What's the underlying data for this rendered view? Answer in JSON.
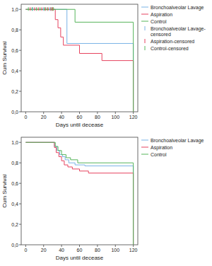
{
  "chart_data": [
    {
      "type": "line",
      "line_style": "step",
      "x_label": "Days until decease",
      "y_label": "Cum Survival",
      "xlim": [
        -5,
        125
      ],
      "ylim": [
        0,
        1.05
      ],
      "xticks": [
        0,
        20,
        40,
        60,
        80,
        100,
        120
      ],
      "yticks": [
        {
          "value": 0,
          "label": "0,0"
        },
        {
          "value": 0.2,
          "label": "0,2"
        },
        {
          "value": 0.4,
          "label": "0,4"
        },
        {
          "value": 0.6,
          "label": "0,6"
        },
        {
          "value": 0.8,
          "label": "0,8"
        },
        {
          "value": 1,
          "label": "1,0"
        }
      ],
      "grid": false,
      "legend": "right",
      "series": [
        {
          "name": "Bronchoalveolar Lavage",
          "color": "#79b3e6",
          "x": [
            0,
            46,
            120
          ],
          "values": [
            1,
            0.667,
            0
          ]
        },
        {
          "name": "Aspiration",
          "color": "#e6435f",
          "x": [
            0,
            33,
            36,
            39,
            42,
            60,
            85,
            120
          ],
          "values": [
            1,
            0.9,
            0.82,
            0.73,
            0.65,
            0.57,
            0.5,
            0
          ]
        },
        {
          "name": "Control",
          "color": "#56b45a",
          "x": [
            0,
            55,
            120
          ],
          "values": [
            1,
            0.875,
            0
          ]
        },
        {
          "name": "Bronchoalveolar Lavage-censored",
          "color": "#79b3e6",
          "type": "scatter",
          "marker": "tick",
          "x": [
            8,
            20,
            27
          ],
          "values": [
            1,
            1,
            1
          ]
        },
        {
          "name": "Aspiration-censored",
          "color": "#e6435f",
          "type": "scatter",
          "marker": "tick",
          "x": [
            5,
            10,
            14,
            18,
            22,
            25,
            28,
            30
          ],
          "values": [
            1,
            1,
            1,
            1,
            1,
            1,
            1,
            1
          ]
        },
        {
          "name": "Control-censored",
          "color": "#56b45a",
          "type": "scatter",
          "marker": "tick",
          "x": [
            3,
            7,
            12,
            16,
            21,
            24,
            29,
            31
          ],
          "values": [
            1,
            1,
            1,
            1,
            1,
            1,
            1,
            1
          ]
        }
      ]
    },
    {
      "type": "line",
      "line_style": "step",
      "x_label": "Days until decease",
      "y_label": "Cum Survival",
      "xlim": [
        -5,
        125
      ],
      "ylim": [
        0,
        1.05
      ],
      "xticks": [
        0,
        20,
        40,
        60,
        80,
        100,
        120
      ],
      "yticks": [
        {
          "value": 0,
          "label": "0,0"
        },
        {
          "value": 0.2,
          "label": "0,2"
        },
        {
          "value": 0.4,
          "label": "0,4"
        },
        {
          "value": 0.6,
          "label": "0,6"
        },
        {
          "value": 0.8,
          "label": "0,8"
        },
        {
          "value": 1,
          "label": "1,0"
        }
      ],
      "grid": false,
      "legend": "right",
      "series": [
        {
          "name": "Bronchoalveolar Lavage",
          "color": "#79b3e6",
          "x": [
            0,
            32,
            35,
            38,
            41,
            44,
            48,
            55,
            66,
            120
          ],
          "values": [
            1,
            0.96,
            0.92,
            0.88,
            0.86,
            0.83,
            0.8,
            0.78,
            0.77,
            0
          ]
        },
        {
          "name": "Aspiration",
          "color": "#e6435f",
          "x": [
            0,
            32,
            34,
            37,
            40,
            43,
            47,
            52,
            60,
            70,
            120
          ],
          "values": [
            1,
            0.95,
            0.9,
            0.86,
            0.82,
            0.78,
            0.76,
            0.74,
            0.72,
            0.7,
            0
          ]
        },
        {
          "name": "Control",
          "color": "#56b45a",
          "x": [
            0,
            33,
            36,
            40,
            45,
            50,
            58,
            120
          ],
          "values": [
            1,
            0.96,
            0.92,
            0.88,
            0.85,
            0.83,
            0.8,
            0
          ]
        }
      ]
    }
  ]
}
